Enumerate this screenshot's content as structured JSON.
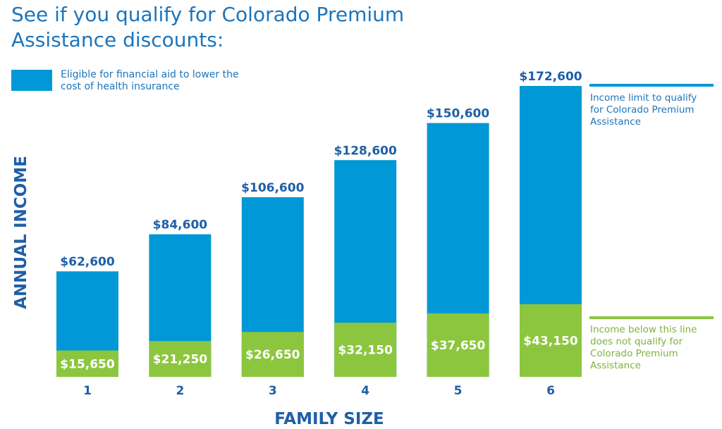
{
  "chart_data": {
    "type": "bar",
    "title_lines": [
      "See if you qualify for Colorado Premium",
      "Assistance discounts:"
    ],
    "legend": {
      "lines": [
        "Eligible for financial aid to lower the",
        "cost of health insurance"
      ],
      "color": "#0098d7"
    },
    "xlabel": "FAMILY SIZE",
    "ylabel": "ANNUAL INCOME",
    "categories": [
      "1",
      "2",
      "3",
      "4",
      "5",
      "6"
    ],
    "series": [
      {
        "values": [
          62600,
          84600,
          106600,
          128600,
          150600,
          172600
        ],
        "labels": [
          "$62,600",
          "$84,600",
          "$106,600",
          "$128,600",
          "$150,600",
          "$172,600"
        ],
        "color": "#0098d7"
      },
      {
        "values": [
          15650,
          21250,
          26650,
          32150,
          37650,
          43150
        ],
        "labels": [
          "$15,650",
          "$21,250",
          "$26,650",
          "$32,150",
          "$37,650",
          "$43,150"
        ],
        "color": "#8cc63f"
      }
    ],
    "annotations": {
      "upper": {
        "lines": [
          "Income limit to qualify",
          "for Colorado Premium",
          "Assistance"
        ],
        "color": "#1b75bc"
      },
      "lower": {
        "lines": [
          "Income below this line",
          "does not qualify for",
          "Colorado Premium",
          "Assistance"
        ],
        "color": "#7cb33f"
      }
    },
    "ylim": [
      0,
      172600
    ],
    "grid": false
  }
}
